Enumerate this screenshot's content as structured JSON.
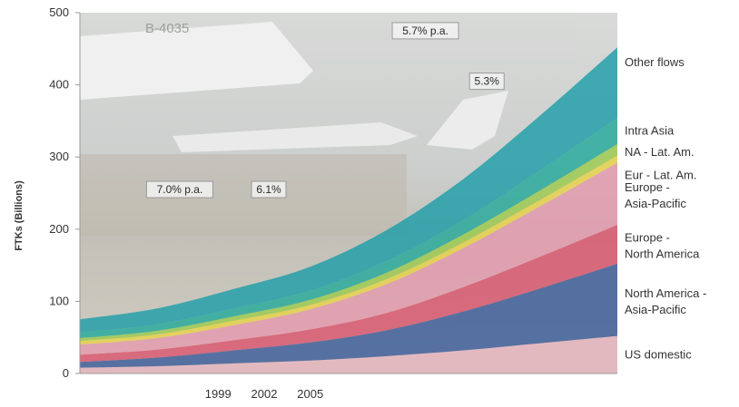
{
  "chart_data": {
    "type": "area",
    "stacked": true,
    "ylabel": "FTKs (Billions)",
    "xlabel": "",
    "ylim": [
      0,
      500
    ],
    "yticks": [
      0,
      100,
      200,
      300,
      400,
      500
    ],
    "xlim": [
      1990,
      2025
    ],
    "xtick_labels": [
      {
        "x": 1999,
        "label": "1999"
      },
      {
        "x": 2002,
        "label": "2002"
      },
      {
        "x": 2005,
        "label": "2005"
      }
    ],
    "x": [
      1990,
      1995,
      2000,
      2005,
      2010,
      2015,
      2020,
      2025
    ],
    "grid": false,
    "background_photo": "cargo aircraft at airport (faded)",
    "photo_text": "B-4035",
    "series": [
      {
        "name": "US domestic",
        "color": "#e7b4bf",
        "values": [
          8,
          10,
          14,
          18,
          24,
          32,
          42,
          52
        ]
      },
      {
        "name": "North America - Asia-Pacific",
        "color": "#3a5d9a",
        "values": [
          8,
          12,
          18,
          25,
          36,
          54,
          76,
          100
        ]
      },
      {
        "name": "Europe - North America",
        "color": "#d9566e",
        "values": [
          10,
          11,
          14,
          18,
          24,
          34,
          44,
          54
        ]
      },
      {
        "name": "Europe - Asia-Pacific",
        "color": "#e49aae",
        "values": [
          14,
          16,
          21,
          28,
          40,
          54,
          70,
          86
        ]
      },
      {
        "name": "Eur - Lat. Am.",
        "color": "#e8d348",
        "values": [
          5,
          5,
          6,
          6,
          7,
          8,
          9,
          10
        ]
      },
      {
        "name": "NA - Lat. Am.",
        "color": "#9ccb4e",
        "values": [
          4,
          5,
          6,
          7,
          9,
          11,
          13,
          16
        ]
      },
      {
        "name": "Intra Asia",
        "color": "#25a99b",
        "values": [
          8,
          9,
          11,
          13,
          16,
          20,
          28,
          36
        ]
      },
      {
        "name": "Other flows",
        "color": "#1e9ea8",
        "values": [
          18,
          22,
          27,
          33,
          43,
          57,
          76,
          98
        ]
      }
    ],
    "annotations": [
      {
        "text": "7.0% p.a.",
        "x": 1996.5,
        "y": 255
      },
      {
        "text": "6.1%",
        "x": 2002.3,
        "y": 255
      },
      {
        "text": "5.7% p.a.",
        "x": 2012.5,
        "y": 475
      },
      {
        "text": "5.3%",
        "x": 2016.5,
        "y": 405
      }
    ]
  },
  "colors": {
    "axis": "#999999",
    "text": "#333333",
    "photo_sky": "#c9ccc9",
    "photo_ground": "#b7b3a6"
  }
}
